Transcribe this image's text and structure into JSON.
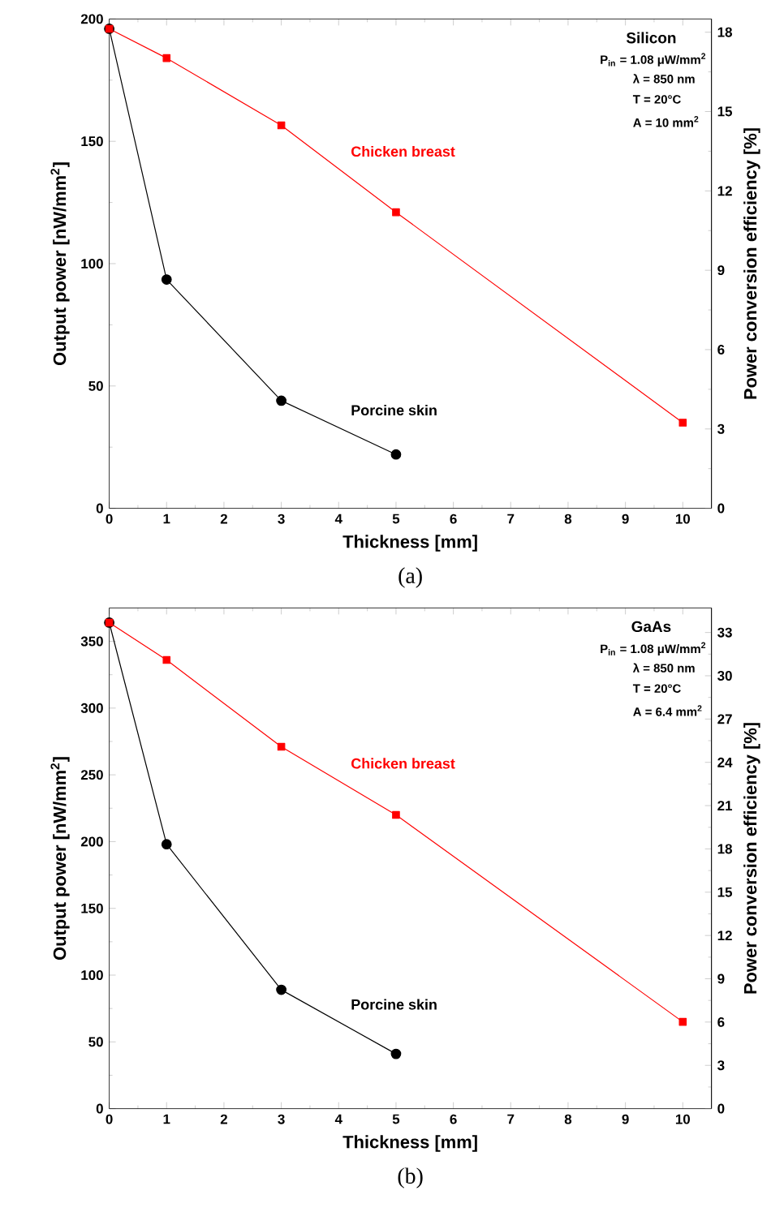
{
  "chart_data": [
    {
      "type": "line",
      "xlabel": "Thickness [mm]",
      "ylabel": "Output power [nW/mm$^{2}$]",
      "y2label": "Power conversion efficiency [%]",
      "xlim": [
        0,
        10.5
      ],
      "xticks": [
        0,
        1,
        2,
        3,
        4,
        5,
        6,
        7,
        8,
        9,
        10
      ],
      "ylim": [
        0,
        200
      ],
      "yticks": [
        0,
        50,
        100,
        150,
        200
      ],
      "y2lim": [
        0,
        18.5
      ],
      "y2ticks": [
        0,
        3,
        6,
        9,
        12,
        15,
        18
      ],
      "series": [
        {
          "name": "Chicken breast",
          "color": "#ff0000",
          "marker": "square",
          "x": [
            0,
            1,
            3,
            5,
            10
          ],
          "values": [
            196,
            184,
            156.5,
            121,
            35
          ]
        },
        {
          "name": "Porcine skin",
          "color": "#000000",
          "marker": "circle",
          "x": [
            0,
            1,
            3,
            5
          ],
          "values": [
            196,
            93.5,
            44,
            22
          ]
        }
      ],
      "annotations": [
        "Silicon",
        "P$_{in}$ = 1.08 μW/mm$^{2}$",
        "λ = 850 nm",
        "T = 20°C",
        "A = 10 mm$^{2}$",
        "(a)"
      ]
    },
    {
      "type": "line",
      "xlabel": "Thickness [mm]",
      "ylabel": "Output power [nW/mm$^{2}$]",
      "y2label": "Power conversion efficiency [%]",
      "xlim": [
        0,
        10.5
      ],
      "xticks": [
        0,
        1,
        2,
        3,
        4,
        5,
        6,
        7,
        8,
        9,
        10
      ],
      "ylim": [
        0,
        375
      ],
      "yticks": [
        0,
        50,
        100,
        150,
        200,
        250,
        300,
        350
      ],
      "y2lim": [
        0,
        34.7
      ],
      "y2ticks": [
        0,
        3,
        6,
        9,
        12,
        15,
        18,
        21,
        24,
        27,
        30,
        33
      ],
      "series": [
        {
          "name": "Chicken breast",
          "color": "#ff0000",
          "marker": "square",
          "x": [
            0,
            1,
            3,
            5,
            10
          ],
          "values": [
            364,
            336,
            271,
            220,
            65
          ]
        },
        {
          "name": "Porcine skin",
          "color": "#000000",
          "marker": "circle",
          "x": [
            0,
            1,
            3,
            5
          ],
          "values": [
            364,
            198,
            89,
            41
          ]
        }
      ],
      "annotations": [
        "GaAs",
        "P$_{in}$ = 1.08 μW/mm$^{2}$",
        "λ = 850 nm",
        "T = 20°C",
        "A = 6.4 mm$^{2}$",
        "(b)"
      ]
    }
  ]
}
